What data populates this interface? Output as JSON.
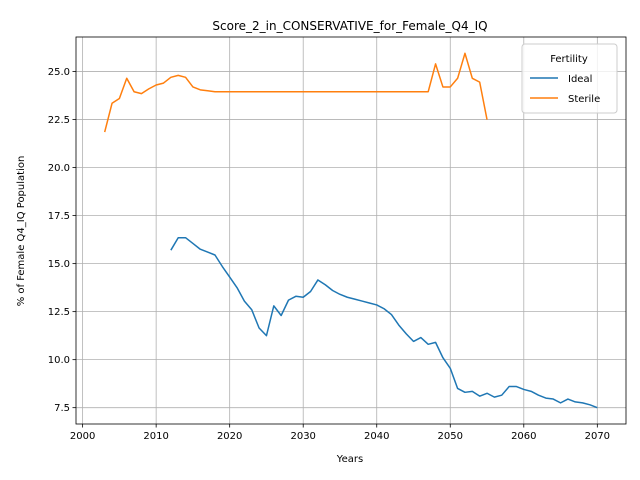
{
  "chart_data": {
    "type": "line",
    "title": "Score_2_in_CONSERVATIVE_for_Female_Q4_IQ",
    "xlabel": "Years",
    "ylabel": "% of Female Q4_IQ Population",
    "xlim": [
      1999.1,
      2073.9
    ],
    "ylim": [
      6.65,
      26.8
    ],
    "xticks": [
      2000,
      2010,
      2020,
      2030,
      2040,
      2050,
      2060,
      2070
    ],
    "yticks": [
      7.5,
      10.0,
      12.5,
      15.0,
      17.5,
      20.0,
      22.5,
      25.0
    ],
    "ytick_labels": [
      "7.5",
      "10.0",
      "12.5",
      "15.0",
      "17.5",
      "20.0",
      "22.5",
      "25.0"
    ],
    "grid": true,
    "legend": {
      "title": "Fertility",
      "placement": "top-right"
    },
    "series": [
      {
        "name": "Ideal",
        "color": "#1f77b4",
        "points": [
          [
            2012,
            15.7
          ],
          [
            2013,
            16.35
          ],
          [
            2014,
            16.35
          ],
          [
            2015,
            16.05
          ],
          [
            2016,
            15.75
          ],
          [
            2017,
            15.6
          ],
          [
            2018,
            15.45
          ],
          [
            2019,
            14.85
          ],
          [
            2020,
            14.3
          ],
          [
            2021,
            13.75
          ],
          [
            2022,
            13.05
          ],
          [
            2023,
            12.6
          ],
          [
            2024,
            11.65
          ],
          [
            2025,
            11.25
          ],
          [
            2026,
            12.8
          ],
          [
            2027,
            12.3
          ],
          [
            2028,
            13.1
          ],
          [
            2029,
            13.3
          ],
          [
            2030,
            13.25
          ],
          [
            2031,
            13.55
          ],
          [
            2032,
            14.15
          ],
          [
            2033,
            13.9
          ],
          [
            2034,
            13.6
          ],
          [
            2035,
            13.4
          ],
          [
            2036,
            13.25
          ],
          [
            2037,
            13.15
          ],
          [
            2038,
            13.05
          ],
          [
            2039,
            12.95
          ],
          [
            2040,
            12.85
          ],
          [
            2041,
            12.65
          ],
          [
            2042,
            12.35
          ],
          [
            2043,
            11.8
          ],
          [
            2044,
            11.35
          ],
          [
            2045,
            10.95
          ],
          [
            2046,
            11.15
          ],
          [
            2047,
            10.8
          ],
          [
            2048,
            10.9
          ],
          [
            2049,
            10.1
          ],
          [
            2050,
            9.55
          ],
          [
            2051,
            8.5
          ],
          [
            2052,
            8.3
          ],
          [
            2053,
            8.35
          ],
          [
            2054,
            8.1
          ],
          [
            2055,
            8.25
          ],
          [
            2056,
            8.05
          ],
          [
            2057,
            8.15
          ],
          [
            2058,
            8.6
          ],
          [
            2059,
            8.6
          ],
          [
            2060,
            8.45
          ],
          [
            2061,
            8.35
          ],
          [
            2062,
            8.15
          ],
          [
            2063,
            8.0
          ],
          [
            2064,
            7.95
          ],
          [
            2065,
            7.75
          ],
          [
            2066,
            7.95
          ],
          [
            2067,
            7.8
          ],
          [
            2068,
            7.75
          ],
          [
            2069,
            7.65
          ],
          [
            2070,
            7.5
          ]
        ]
      },
      {
        "name": "Sterile",
        "color": "#ff7f0e",
        "points": [
          [
            2003,
            21.85
          ],
          [
            2004,
            23.35
          ],
          [
            2005,
            23.6
          ],
          [
            2006,
            24.65
          ],
          [
            2007,
            23.95
          ],
          [
            2008,
            23.85
          ],
          [
            2009,
            24.1
          ],
          [
            2010,
            24.3
          ],
          [
            2011,
            24.4
          ],
          [
            2012,
            24.7
          ],
          [
            2013,
            24.8
          ],
          [
            2014,
            24.7
          ],
          [
            2015,
            24.2
          ],
          [
            2016,
            24.05
          ],
          [
            2017,
            24.0
          ],
          [
            2018,
            23.95
          ],
          [
            2019,
            23.95
          ],
          [
            2020,
            23.95
          ],
          [
            2021,
            23.95
          ],
          [
            2022,
            23.95
          ],
          [
            2023,
            23.95
          ],
          [
            2024,
            23.95
          ],
          [
            2025,
            23.95
          ],
          [
            2026,
            23.95
          ],
          [
            2027,
            23.95
          ],
          [
            2028,
            23.95
          ],
          [
            2029,
            23.95
          ],
          [
            2030,
            23.95
          ],
          [
            2031,
            23.95
          ],
          [
            2032,
            23.95
          ],
          [
            2033,
            23.95
          ],
          [
            2034,
            23.95
          ],
          [
            2035,
            23.95
          ],
          [
            2036,
            23.95
          ],
          [
            2037,
            23.95
          ],
          [
            2038,
            23.95
          ],
          [
            2039,
            23.95
          ],
          [
            2040,
            23.95
          ],
          [
            2041,
            23.95
          ],
          [
            2042,
            23.95
          ],
          [
            2043,
            23.95
          ],
          [
            2044,
            23.95
          ],
          [
            2045,
            23.95
          ],
          [
            2046,
            23.95
          ],
          [
            2047,
            23.95
          ],
          [
            2048,
            25.4
          ],
          [
            2049,
            24.2
          ],
          [
            2050,
            24.2
          ],
          [
            2051,
            24.65
          ],
          [
            2052,
            25.95
          ],
          [
            2053,
            24.65
          ],
          [
            2054,
            24.45
          ],
          [
            2055,
            22.5
          ]
        ]
      }
    ]
  }
}
